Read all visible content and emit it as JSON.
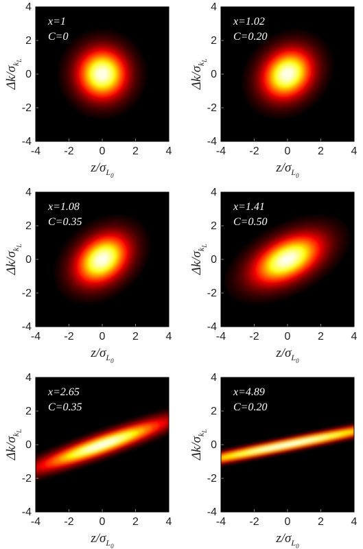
{
  "chart_data": [
    {
      "type": "heatmap",
      "annotation": {
        "line1": "x=1",
        "line2": "C=0"
      },
      "xlabel": "z/σ_{L_0}",
      "ylabel": "Δk/σ_{k_L}",
      "xlim": [
        -4,
        4
      ],
      "ylim": [
        -4,
        4
      ],
      "xticks": [
        -4,
        -2,
        0,
        2,
        4
      ],
      "yticks": [
        -4,
        -2,
        0,
        2,
        4
      ],
      "distribution": {
        "center": [
          0,
          0
        ],
        "sigma_z": 1.0,
        "sigma_k": 1.0,
        "correlation": 0.0
      },
      "colormap": "hot"
    },
    {
      "type": "heatmap",
      "annotation": {
        "line1": "x=1.02",
        "line2": "C=0.20"
      },
      "xlabel": "z/σ_{L_0}",
      "ylabel": "Δk/σ_{k_L}",
      "xlim": [
        -4,
        4
      ],
      "ylim": [
        -4,
        4
      ],
      "xticks": [
        -4,
        -2,
        0,
        2,
        4
      ],
      "yticks": [
        -4,
        -2,
        0,
        2,
        4
      ],
      "distribution": {
        "center": [
          0,
          0
        ],
        "sigma_z": 1.02,
        "sigma_k": 1.0,
        "correlation": 0.196
      },
      "colormap": "hot"
    },
    {
      "type": "heatmap",
      "annotation": {
        "line1": "x=1.08",
        "line2": "C=0.35"
      },
      "xlabel": "z/σ_{L_0}",
      "ylabel": "Δk/σ_{k_L}",
      "xlim": [
        -4,
        4
      ],
      "ylim": [
        -4,
        4
      ],
      "xticks": [
        -4,
        -2,
        0,
        2,
        4
      ],
      "yticks": [
        -4,
        -2,
        0,
        2,
        4
      ],
      "distribution": {
        "center": [
          0,
          0
        ],
        "sigma_z": 1.08,
        "sigma_k": 1.0,
        "correlation": 0.324
      },
      "colormap": "hot"
    },
    {
      "type": "heatmap",
      "annotation": {
        "line1": "x=1.41",
        "line2": "C=0.50"
      },
      "xlabel": "z/σ_{L_0}",
      "ylabel": "Δk/σ_{k_L}",
      "xlim": [
        -4,
        4
      ],
      "ylim": [
        -4,
        4
      ],
      "xticks": [
        -4,
        -2,
        0,
        2,
        4
      ],
      "yticks": [
        -4,
        -2,
        0,
        2,
        4
      ],
      "distribution": {
        "center": [
          0,
          0
        ],
        "sigma_z": 1.41,
        "sigma_k": 1.0,
        "correlation": 0.5
      },
      "colormap": "hot"
    },
    {
      "type": "heatmap",
      "annotation": {
        "line1": "x=2.65",
        "line2": "C=0.35"
      },
      "xlabel": "z/σ_{L_0}",
      "ylabel": "Δk/σ_{k_L}",
      "xlim": [
        -4,
        4
      ],
      "ylim": [
        -4,
        4
      ],
      "xticks": [
        -4,
        -2,
        0,
        2,
        4
      ],
      "yticks": [
        -4,
        -2,
        0,
        2,
        4
      ],
      "distribution": {
        "center": [
          0,
          0
        ],
        "sigma_z": 2.65,
        "sigma_k": 1.0,
        "correlation": 0.926
      },
      "colormap": "hot"
    },
    {
      "type": "heatmap",
      "annotation": {
        "line1": "x=4.89",
        "line2": "C=0.20"
      },
      "xlabel": "z/σ_{L_0}",
      "ylabel": "Δk/σ_{k_L}",
      "xlim": [
        -4,
        4
      ],
      "ylim": [
        -4,
        4
      ],
      "xticks": [
        -4,
        -2,
        0,
        2,
        4
      ],
      "yticks": [
        -4,
        -2,
        0,
        2,
        4
      ],
      "distribution": {
        "center": [
          0,
          0
        ],
        "sigma_z": 4.89,
        "sigma_k": 1.0,
        "correlation": 0.978
      },
      "colormap": "hot"
    }
  ]
}
